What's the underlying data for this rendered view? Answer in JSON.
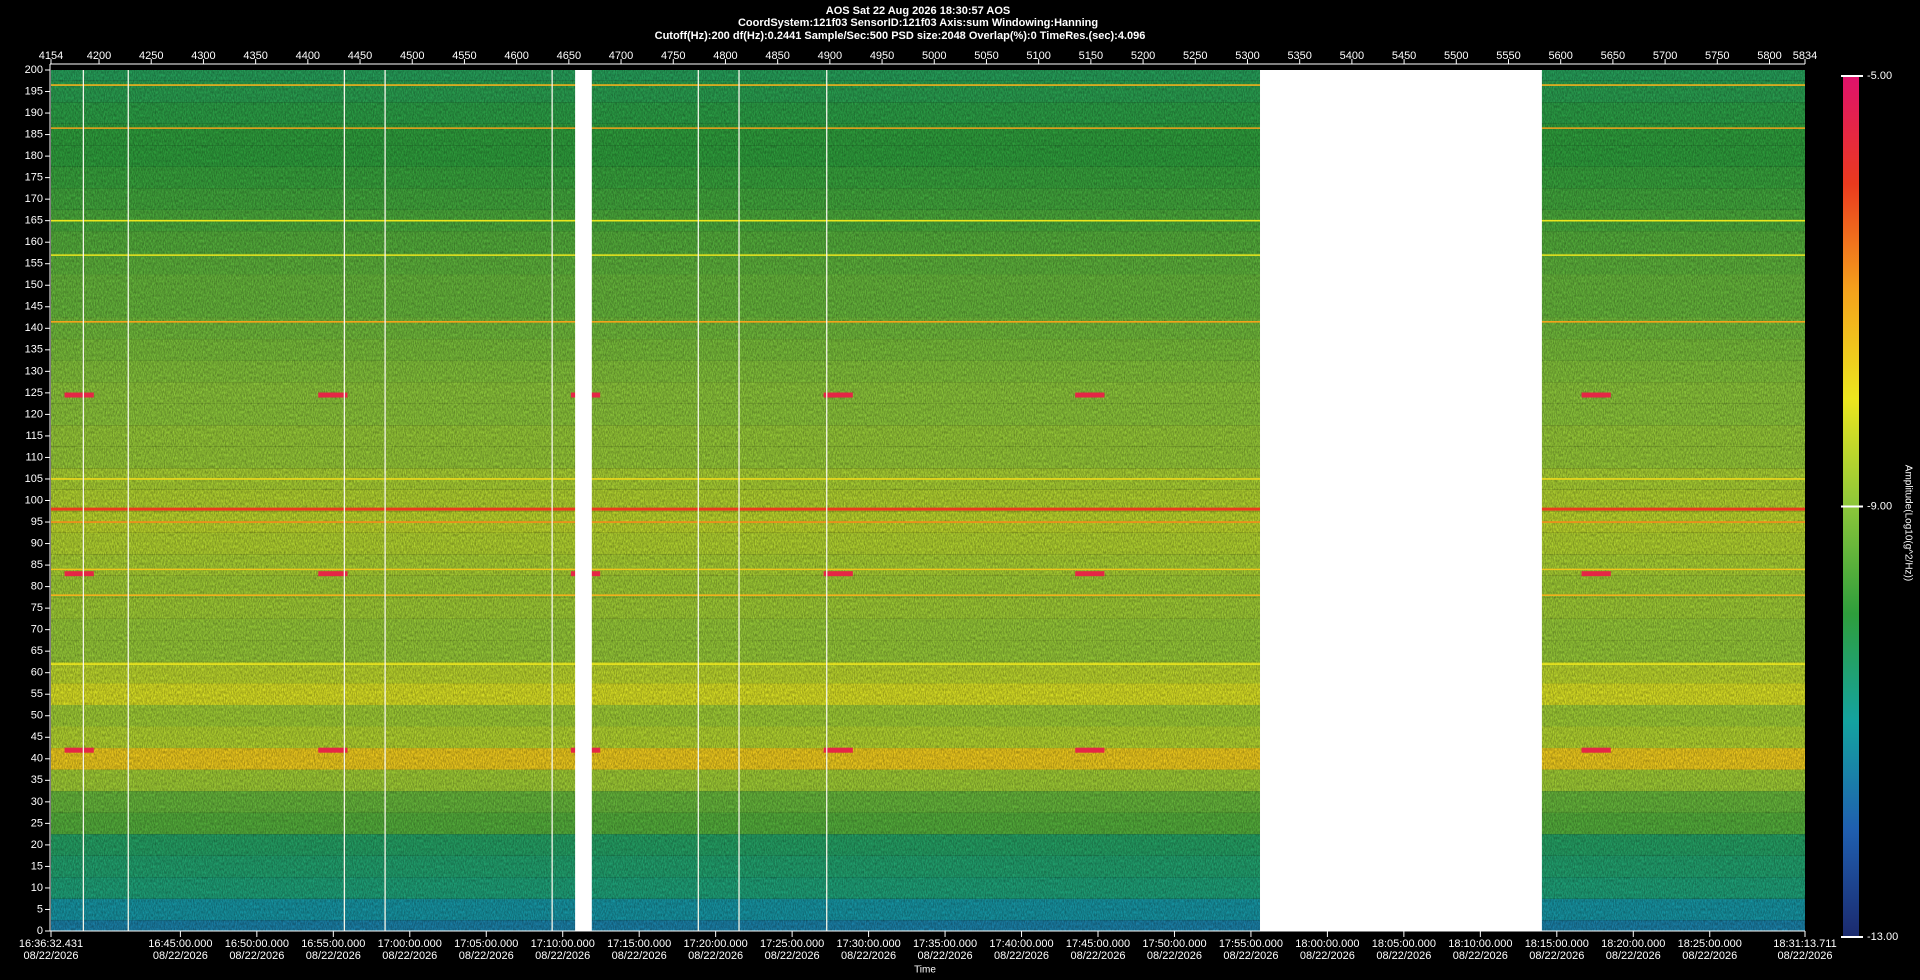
{
  "chart_data": {
    "type": "spectrogram",
    "title": "AOS  Sat 22 Aug 2026 18:30:57  AOS",
    "subtitle": "CoordSystem:121f03   SensorID:121f03   Axis:sum   Windowing:Hanning",
    "subtitle2": "Cutoff(Hz):200   df(Hz):0.2441   Sample/Sec:500   PSD size:2048   Overlap(%):0   TimeRes.(sec):4.096",
    "x_label": "Time",
    "colorbar_label": "Amplitude(Log10(g^2/Hz))",
    "xlim": [
      4154,
      5834
    ],
    "xticks": [
      4154,
      4200,
      4250,
      4300,
      4350,
      4400,
      4450,
      4500,
      4550,
      4600,
      4650,
      4700,
      4750,
      4800,
      4850,
      4900,
      4950,
      5000,
      5050,
      5100,
      5150,
      5200,
      5250,
      5300,
      5350,
      5400,
      5450,
      5500,
      5550,
      5600,
      5650,
      5700,
      5750,
      5800,
      5834
    ],
    "time_lim": [
      "16:36:32.431",
      "18:31:13.711"
    ],
    "time_ticks": [
      {
        "time": "16:36:32.431",
        "date": "08/22/2026"
      },
      {
        "time": "16:45:00.000",
        "date": "08/22/2026"
      },
      {
        "time": "16:50:00.000",
        "date": "08/22/2026"
      },
      {
        "time": "16:55:00.000",
        "date": "08/22/2026"
      },
      {
        "time": "17:00:00.000",
        "date": "08/22/2026"
      },
      {
        "time": "17:05:00.000",
        "date": "08/22/2026"
      },
      {
        "time": "17:10:00.000",
        "date": "08/22/2026"
      },
      {
        "time": "17:15:00.000",
        "date": "08/22/2026"
      },
      {
        "time": "17:20:00.000",
        "date": "08/22/2026"
      },
      {
        "time": "17:25:00.000",
        "date": "08/22/2026"
      },
      {
        "time": "17:30:00.000",
        "date": "08/22/2026"
      },
      {
        "time": "17:35:00.000",
        "date": "08/22/2026"
      },
      {
        "time": "17:40:00.000",
        "date": "08/22/2026"
      },
      {
        "time": "17:45:00.000",
        "date": "08/22/2026"
      },
      {
        "time": "17:50:00.000",
        "date": "08/22/2026"
      },
      {
        "time": "17:55:00.000",
        "date": "08/22/2026"
      },
      {
        "time": "18:00:00.000",
        "date": "08/22/2026"
      },
      {
        "time": "18:05:00.000",
        "date": "08/22/2026"
      },
      {
        "time": "18:10:00.000",
        "date": "08/22/2026"
      },
      {
        "time": "18:15:00.000",
        "date": "08/22/2026"
      },
      {
        "time": "18:20:00.000",
        "date": "08/22/2026"
      },
      {
        "time": "18:25:00.000",
        "date": "08/22/2026"
      },
      {
        "time": "18:31:13.711",
        "date": "08/22/2026"
      }
    ],
    "ylim": [
      0,
      200
    ],
    "yticks": [
      0,
      5,
      10,
      15,
      20,
      25,
      30,
      35,
      40,
      45,
      50,
      55,
      60,
      65,
      70,
      75,
      80,
      85,
      90,
      95,
      100,
      105,
      110,
      115,
      120,
      125,
      130,
      135,
      140,
      145,
      150,
      155,
      160,
      165,
      170,
      175,
      180,
      185,
      190,
      195,
      200
    ],
    "clim": [
      -13,
      -5
    ],
    "cticks": [
      {
        "value": -13,
        "label": "-13.00"
      },
      {
        "value": -9,
        "label": "-9.00"
      },
      {
        "value": -5,
        "label": "-5.00"
      }
    ],
    "colormap": [
      "#1b2a6e",
      "#1f5fb0",
      "#14a3a0",
      "#2e9e3c",
      "#8cc63a",
      "#ece61e",
      "#f4a21c",
      "#ea3a1e",
      "#e0126c"
    ],
    "profile": {
      "freq": [
        0,
        5,
        10,
        15,
        20,
        25,
        30,
        35,
        40,
        45,
        50,
        55,
        60,
        65,
        70,
        75,
        80,
        85,
        90,
        95,
        100,
        105,
        110,
        115,
        120,
        125,
        130,
        135,
        140,
        145,
        150,
        155,
        160,
        165,
        170,
        175,
        180,
        185,
        190,
        195,
        200
      ],
      "amplitude": [
        -11.5,
        -11.2,
        -10.6,
        -10.5,
        -10.4,
        -9.6,
        -9.4,
        -8.8,
        -7.6,
        -8.6,
        -8.8,
        -8.2,
        -8.5,
        -8.9,
        -8.9,
        -8.8,
        -8.8,
        -8.7,
        -8.6,
        -8.5,
        -8.6,
        -8.7,
        -8.9,
        -8.9,
        -9.0,
        -9.0,
        -9.1,
        -9.2,
        -9.3,
        -9.4,
        -9.4,
        -9.5,
        -9.6,
        -9.7,
        -9.8,
        -9.9,
        -10.0,
        -10.0,
        -10.1,
        -10.2,
        -10.3
      ]
    },
    "tones": [
      {
        "freq": 196.5,
        "amplitude": -7.2
      },
      {
        "freq": 186.5,
        "amplitude": -7.0
      },
      {
        "freq": 165,
        "amplitude": -8.0
      },
      {
        "freq": 157,
        "amplitude": -8.0
      },
      {
        "freq": 141.5,
        "amplitude": -7.0
      },
      {
        "freq": 105,
        "amplitude": -7.8
      },
      {
        "freq": 98,
        "amplitude": -6.0
      },
      {
        "freq": 95,
        "amplitude": -6.8
      },
      {
        "freq": 84,
        "amplitude": -7.5
      },
      {
        "freq": 78,
        "amplitude": -7.2
      },
      {
        "freq": 62,
        "amplitude": -8.0
      }
    ],
    "events": {
      "start": [
        4167,
        4410,
        4652,
        4894,
        5135,
        5620
      ],
      "duration": 28,
      "freq": [
        124.5,
        83,
        42
      ],
      "amplitude": -5.5
    },
    "gaps": [
      [
        4656,
        4672
      ],
      [
        5312,
        5582
      ]
    ],
    "dropouts": [
      4185,
      4228,
      4435,
      4474,
      4634,
      4774,
      4813,
      4897
    ]
  }
}
